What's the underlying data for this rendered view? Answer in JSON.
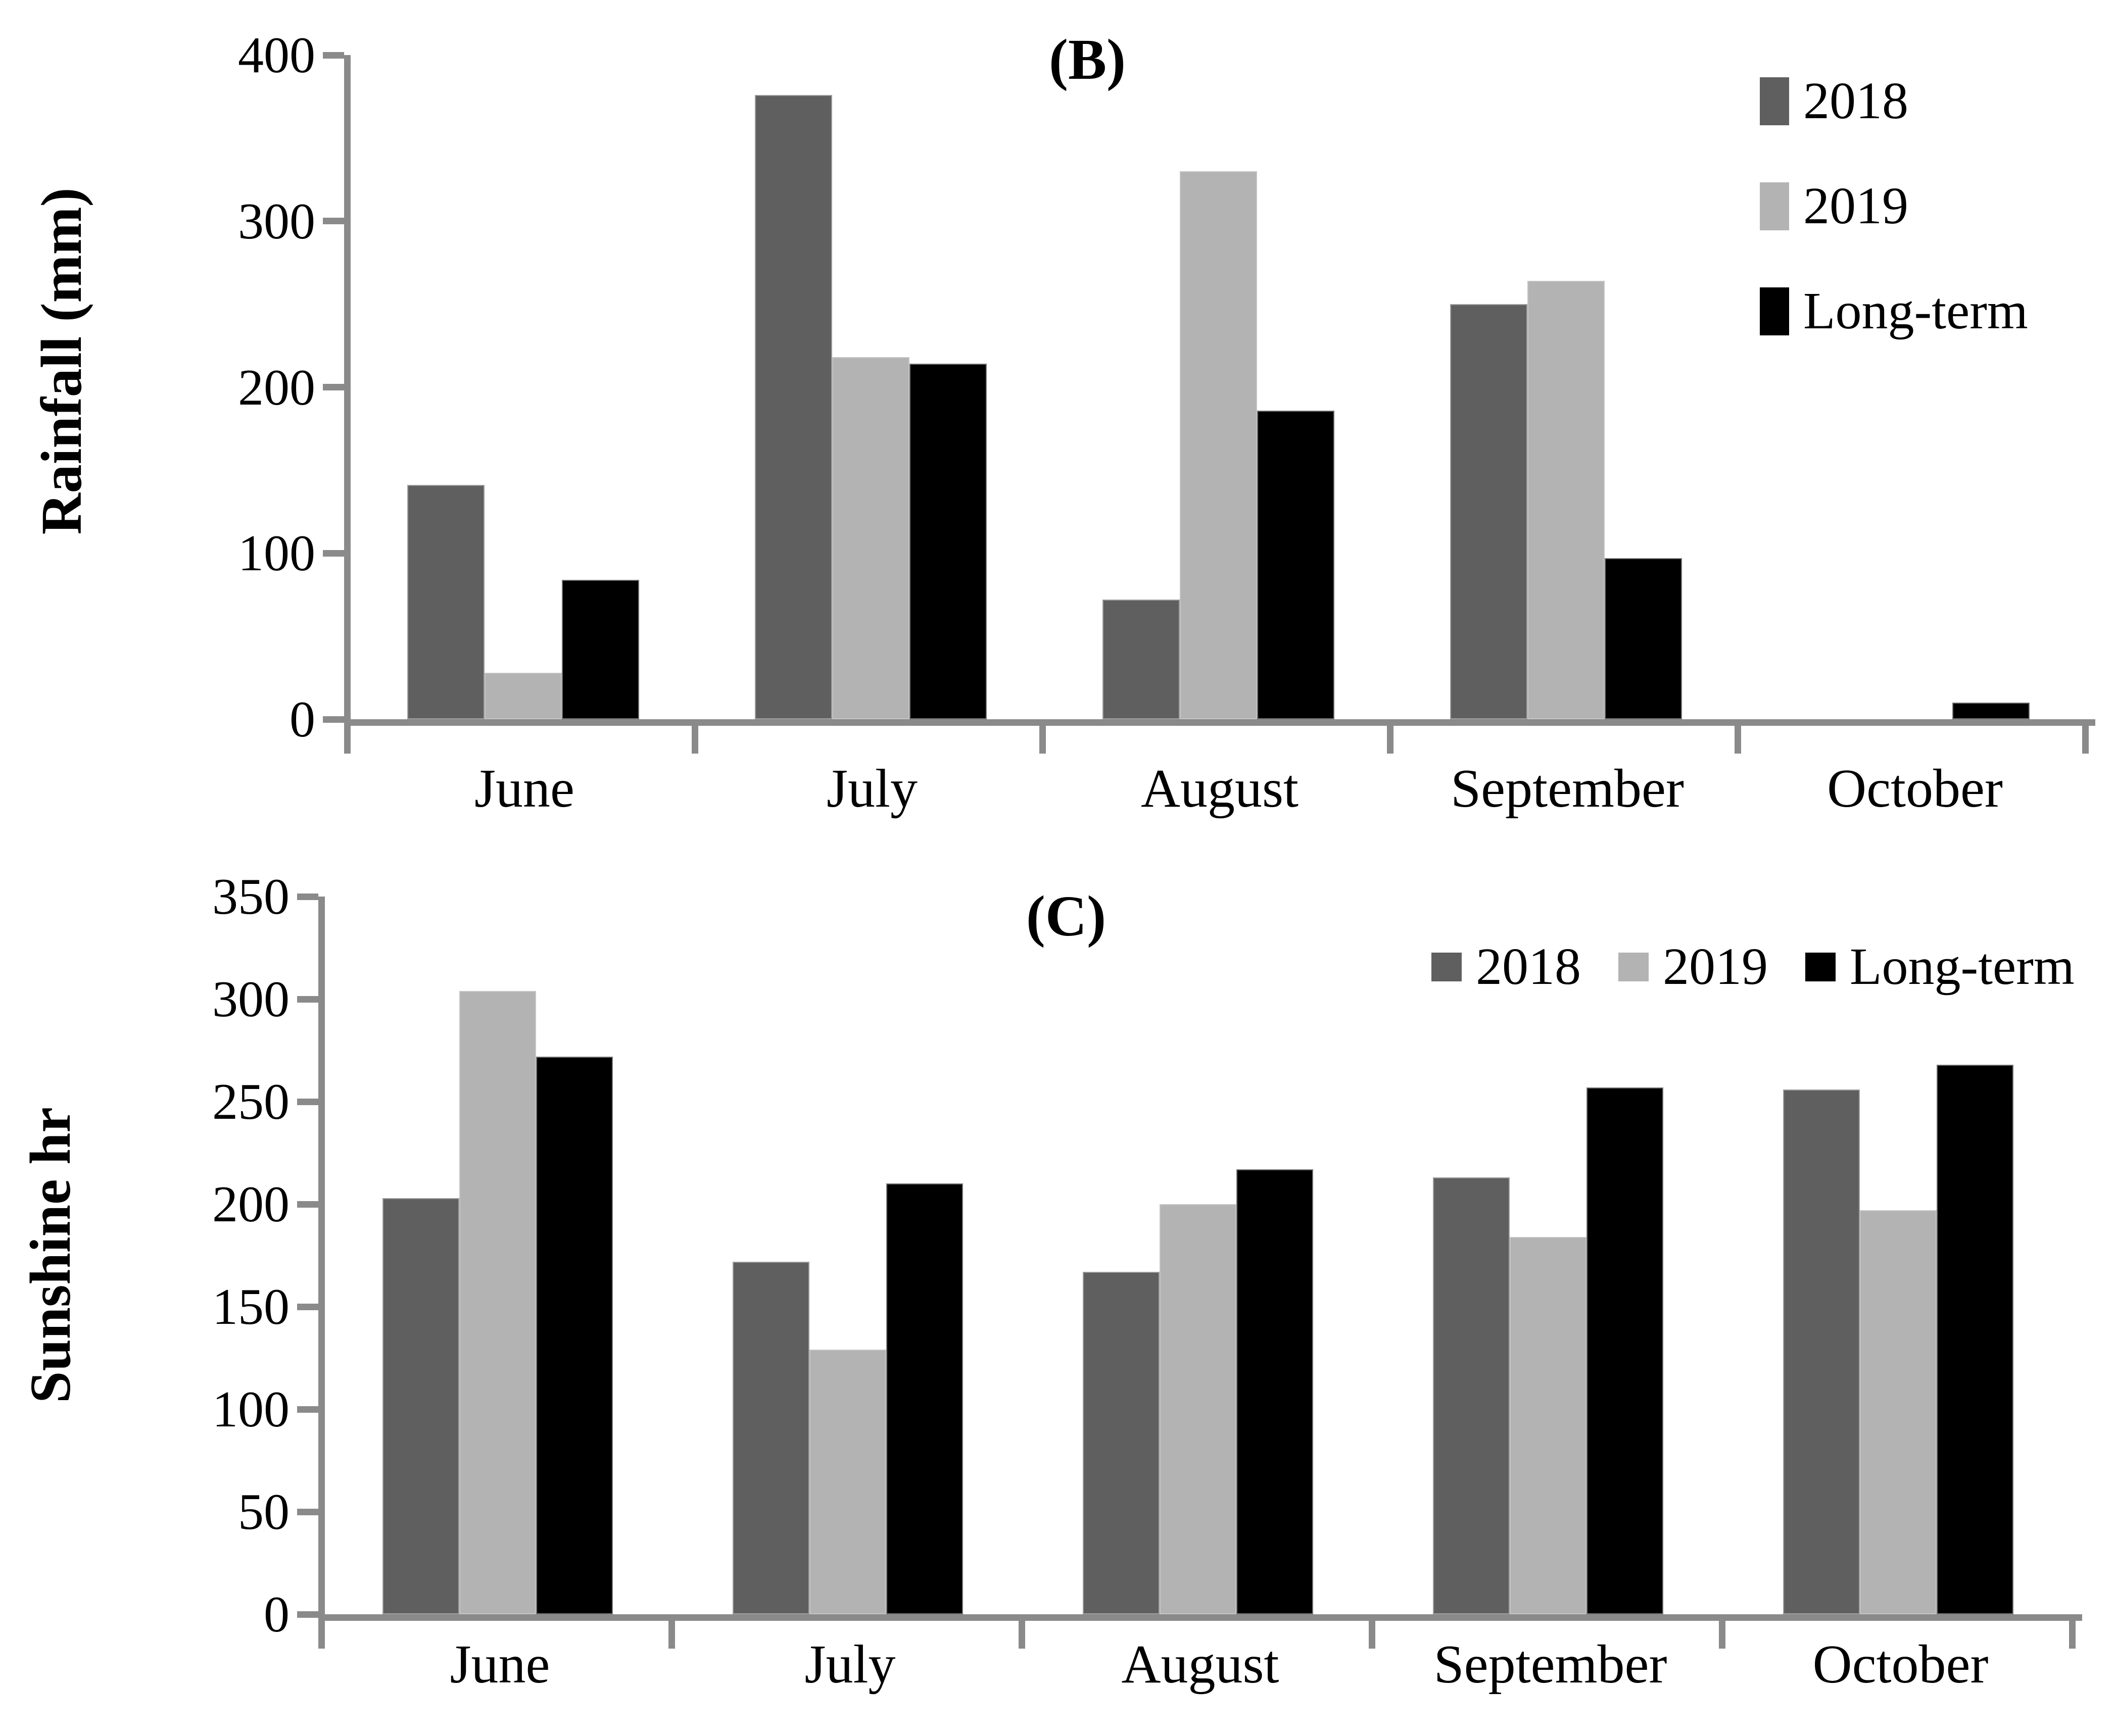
{
  "colors": {
    "axis": "#8a8a8a",
    "background": "#ffffff",
    "text": "#000000",
    "series_2018": "#5f5f5f",
    "series_2019": "#b3b3b3",
    "series_long_term": "#000000"
  },
  "chart_data": [
    {
      "type": "bar",
      "title": "(B)",
      "ylabel": "Rainfall (mm)",
      "xlabel": "",
      "categories": [
        "June",
        "July",
        "August",
        "September",
        "October"
      ],
      "series": [
        {
          "name": "2018",
          "color": "#5f5f5f",
          "values": [
            141,
            376,
            72,
            250,
            0
          ]
        },
        {
          "name": "2019",
          "color": "#b3b3b3",
          "values": [
            28,
            218,
            330,
            264,
            0
          ]
        },
        {
          "name": "Long-term",
          "color": "#000000",
          "values": [
            84,
            214,
            186,
            97,
            10
          ]
        }
      ],
      "ylim": [
        0,
        400
      ],
      "ytick_step": 100,
      "ytick_labels": [
        "0",
        "100",
        "200",
        "300",
        "400"
      ],
      "grid": false,
      "legend_position": "top-right-vertical"
    },
    {
      "type": "bar",
      "title": "(C)",
      "ylabel": "Sunshine hr",
      "xlabel": "",
      "categories": [
        "June",
        "July",
        "August",
        "September",
        "October"
      ],
      "series": [
        {
          "name": "2018",
          "color": "#5f5f5f",
          "values": [
            203,
            172,
            167,
            213,
            256
          ]
        },
        {
          "name": "2019",
          "color": "#b3b3b3",
          "values": [
            304,
            129,
            200,
            184,
            197
          ]
        },
        {
          "name": "Long-term",
          "color": "#000000",
          "values": [
            272,
            210,
            217,
            257,
            268
          ]
        }
      ],
      "ylim": [
        0,
        350
      ],
      "ytick_step": 50,
      "ytick_labels": [
        "0",
        "50",
        "100",
        "150",
        "200",
        "250",
        "300",
        "350"
      ],
      "grid": false,
      "legend_position": "top-right-horizontal"
    }
  ]
}
